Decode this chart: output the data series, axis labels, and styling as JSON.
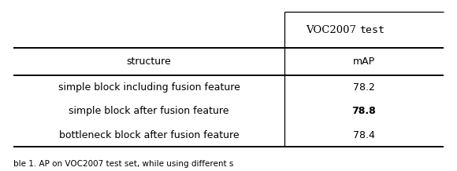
{
  "header_row1_left": "",
  "header_row1_right": "VOC2007 test",
  "header_row2": [
    "structure",
    "mAP"
  ],
  "rows": [
    [
      "simple block including fusion feature",
      "78.2",
      false
    ],
    [
      "simple block after fusion feature",
      "78.8",
      true
    ],
    [
      "bottleneck block after fusion feature",
      "78.4",
      false
    ]
  ],
  "caption": "ble 1. AP on VOC2007 test set, while using different s",
  "figsize": [
    5.8,
    2.18
  ],
  "dpi": 100,
  "bg_color": "#ffffff",
  "text_color": "#000000",
  "line_color": "#000000",
  "font_size": 9.0,
  "caption_font_size": 7.5,
  "col_split": 0.63
}
